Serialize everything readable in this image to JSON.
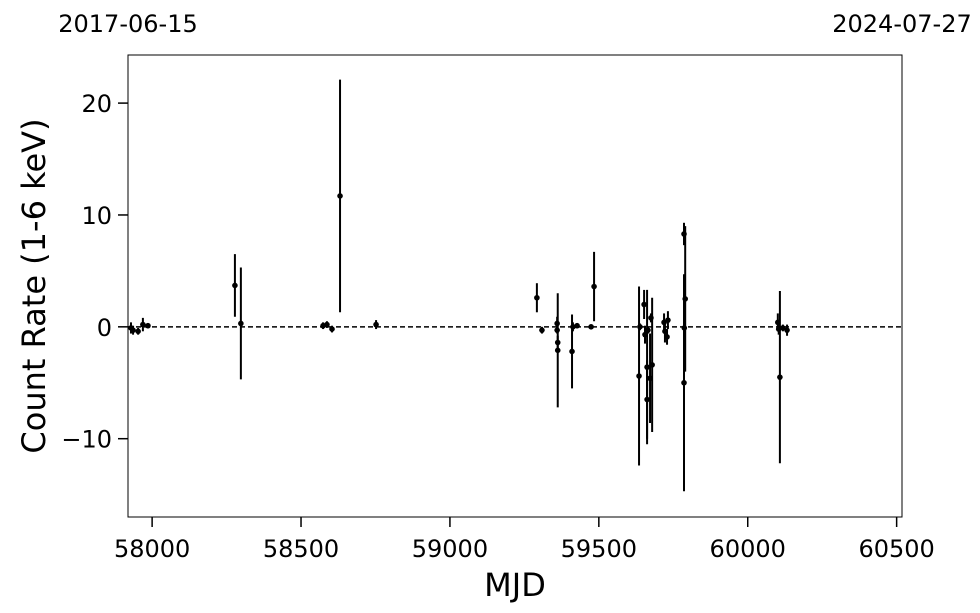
{
  "chart_data": {
    "type": "errorbar",
    "xlabel": "MJD",
    "ylabel": "Count Rate (1-6 keV)",
    "date_labels": [
      "2017-06-15",
      "2024-07-27"
    ],
    "xlim": [
      57919,
      60518
    ],
    "ylim": [
      -17,
      24.3
    ],
    "xticks": [
      58000,
      58500,
      59000,
      59500,
      60000,
      60500
    ],
    "yticks": [
      {
        "value": -10,
        "label": "−10"
      },
      0,
      10,
      20
    ],
    "hline": 0,
    "color": "#000000",
    "x": [
      57929,
      57936,
      57953,
      57969,
      57986,
      58278,
      58298,
      58574,
      58587,
      58604,
      58631,
      58752,
      59292,
      59309,
      59360,
      59360,
      59362,
      59362,
      59410,
      59413,
      59427,
      59474,
      59484,
      59635,
      59638,
      59652,
      59655,
      59662,
      59662,
      59665,
      59672,
      59675,
      59679,
      59719,
      59722,
      59729,
      59732,
      59786,
      59786,
      59787,
      59790,
      60101,
      60104,
      60108,
      60118,
      60132
    ],
    "values": [
      -0.1,
      -0.3,
      -0.4,
      0.2,
      0.1,
      3.7,
      0.3,
      0.1,
      0.2,
      -0.2,
      11.7,
      0.2,
      2.6,
      -0.3,
      0.3,
      -0.3,
      -1.4,
      -2.1,
      -2.2,
      0,
      0.1,
      0,
      3.6,
      -4.4,
      0,
      2.0,
      -0.7,
      -3.6,
      -6.5,
      -0.3,
      -4.6,
      0.8,
      -3.4,
      0.4,
      -0.4,
      -0.9,
      0.6,
      8.3,
      -5.0,
      -0.1,
      2.5,
      0.4,
      -0.2,
      -4.5,
      -0.1,
      -0.3
    ],
    "errors": [
      0.5,
      0.4,
      0.3,
      0.6,
      0.2,
      2.8,
      5.0,
      0.3,
      0.3,
      0.3,
      10.4,
      0.4,
      1.3,
      0.3,
      0.6,
      0.3,
      0.6,
      5.1,
      3.3,
      0.4,
      0.2,
      0.2,
      3.1,
      8.0,
      0.3,
      1.3,
      0.8,
      6.9,
      3.5,
      0.3,
      4.0,
      0.4,
      6.0,
      0.8,
      1.0,
      0.7,
      0.8,
      1.0,
      9.7,
      1.0,
      6.5,
      0.8,
      0.5,
      7.7,
      0.3,
      0.5
    ]
  }
}
